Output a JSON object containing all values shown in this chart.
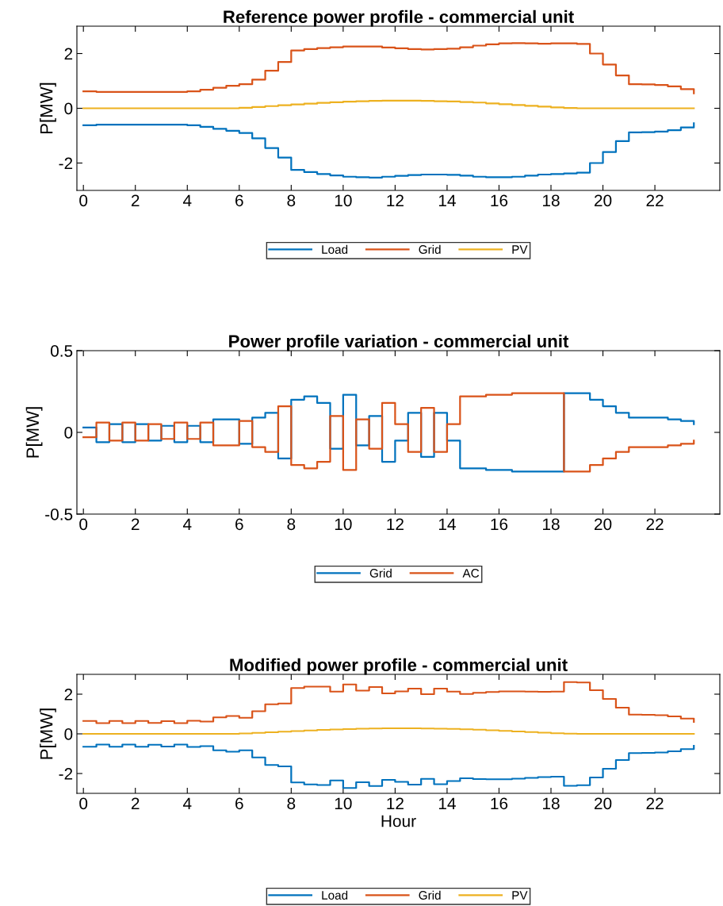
{
  "chart_data": [
    {
      "type": "step",
      "title": "Reference power profile - commercial unit",
      "ylabel": "P[MW]",
      "xlim": [
        -0.25,
        24.5
      ],
      "xticks": [
        0,
        2,
        4,
        6,
        8,
        10,
        12,
        14,
        16,
        18,
        20,
        22
      ],
      "ylim": [
        -3,
        3
      ],
      "yticks": [
        -2,
        0,
        2
      ],
      "legend": "bottom",
      "grid": false,
      "x": [
        0,
        0.5,
        1,
        1.5,
        2,
        2.5,
        3,
        3.5,
        4,
        4.5,
        5,
        5.5,
        6,
        6.5,
        7,
        7.5,
        8,
        8.5,
        9,
        9.5,
        10,
        10.5,
        11,
        11.5,
        12,
        12.5,
        13,
        13.5,
        14,
        14.5,
        15,
        15.5,
        16,
        16.5,
        17,
        17.5,
        18,
        18.5,
        19,
        19.5,
        20,
        20.5,
        21,
        21.5,
        22,
        22.5,
        23,
        23.5
      ],
      "series": [
        {
          "name": "Load",
          "color": "#0072bd",
          "values": [
            -0.62,
            -0.6,
            -0.6,
            -0.6,
            -0.6,
            -0.6,
            -0.6,
            -0.6,
            -0.62,
            -0.68,
            -0.75,
            -0.82,
            -0.9,
            -1.1,
            -1.45,
            -1.8,
            -2.25,
            -2.33,
            -2.4,
            -2.45,
            -2.5,
            -2.52,
            -2.53,
            -2.5,
            -2.47,
            -2.44,
            -2.42,
            -2.42,
            -2.43,
            -2.46,
            -2.5,
            -2.52,
            -2.52,
            -2.5,
            -2.46,
            -2.42,
            -2.4,
            -2.38,
            -2.35,
            -2.0,
            -1.6,
            -1.2,
            -0.88,
            -0.87,
            -0.85,
            -0.8,
            -0.7,
            -0.55
          ]
        },
        {
          "name": "Grid",
          "color": "#d95319",
          "values": [
            0.62,
            0.6,
            0.6,
            0.6,
            0.6,
            0.6,
            0.6,
            0.6,
            0.62,
            0.68,
            0.75,
            0.82,
            0.88,
            1.05,
            1.37,
            1.69,
            2.11,
            2.16,
            2.2,
            2.23,
            2.26,
            2.26,
            2.26,
            2.22,
            2.19,
            2.16,
            2.15,
            2.16,
            2.18,
            2.23,
            2.29,
            2.34,
            2.37,
            2.38,
            2.37,
            2.36,
            2.37,
            2.37,
            2.35,
            2.0,
            1.6,
            1.2,
            0.88,
            0.87,
            0.85,
            0.8,
            0.7,
            0.55
          ]
        },
        {
          "name": "PV",
          "color": "#edb120",
          "values": [
            0,
            0,
            0,
            0,
            0,
            0,
            0,
            0,
            0,
            0,
            0,
            0,
            0.02,
            0.05,
            0.08,
            0.11,
            0.14,
            0.17,
            0.2,
            0.22,
            0.24,
            0.26,
            0.27,
            0.28,
            0.28,
            0.28,
            0.27,
            0.26,
            0.25,
            0.23,
            0.21,
            0.18,
            0.15,
            0.12,
            0.09,
            0.06,
            0.03,
            0.01,
            0,
            0,
            0,
            0,
            0,
            0,
            0,
            0,
            0,
            0
          ]
        }
      ]
    },
    {
      "type": "step",
      "title": "Power profile variation - commercial unit",
      "ylabel": "P[MW]",
      "xlim": [
        -0.25,
        24.5
      ],
      "xticks": [
        0,
        2,
        4,
        6,
        8,
        10,
        12,
        14,
        16,
        18,
        20,
        22
      ],
      "ylim": [
        -0.5,
        0.5
      ],
      "yticks": [
        -0.5,
        0,
        0.5
      ],
      "legend": "bottom",
      "grid": false,
      "x": [
        0,
        0.5,
        1,
        1.5,
        2,
        2.5,
        3,
        3.5,
        4,
        4.5,
        5,
        5.5,
        6,
        6.5,
        7,
        7.5,
        8,
        8.5,
        9,
        9.5,
        10,
        10.5,
        11,
        11.5,
        12,
        12.5,
        13,
        13.5,
        14,
        14.5,
        15,
        15.5,
        16,
        16.5,
        17,
        17.5,
        18,
        18.5,
        19,
        19.5,
        20,
        20.5,
        21,
        21.5,
        22,
        22.5,
        23,
        23.5
      ],
      "series": [
        {
          "name": "Grid",
          "color": "#0072bd",
          "values": [
            0.03,
            -0.06,
            0.05,
            -0.06,
            0.05,
            -0.05,
            0.04,
            -0.06,
            0.04,
            -0.06,
            0.08,
            0.08,
            -0.07,
            0.09,
            0.12,
            -0.16,
            0.2,
            0.22,
            0.18,
            -0.1,
            0.23,
            -0.08,
            0.1,
            -0.18,
            -0.05,
            0.12,
            -0.15,
            0.12,
            -0.05,
            -0.22,
            -0.22,
            -0.23,
            -0.23,
            -0.24,
            -0.24,
            -0.24,
            -0.24,
            0.24,
            0.24,
            0.2,
            0.16,
            0.12,
            0.09,
            0.09,
            0.09,
            0.08,
            0.07,
            0.05
          ]
        },
        {
          "name": "AC",
          "color": "#d95319",
          "values": [
            -0.03,
            0.06,
            -0.05,
            0.06,
            -0.05,
            0.05,
            -0.04,
            0.06,
            -0.04,
            0.06,
            -0.08,
            -0.08,
            0.07,
            -0.09,
            -0.12,
            0.16,
            -0.2,
            -0.22,
            -0.18,
            0.1,
            -0.23,
            0.08,
            -0.1,
            0.18,
            0.05,
            -0.12,
            0.15,
            -0.12,
            0.05,
            0.22,
            0.22,
            0.23,
            0.23,
            0.24,
            0.24,
            0.24,
            0.24,
            -0.24,
            -0.24,
            -0.2,
            -0.16,
            -0.12,
            -0.09,
            -0.09,
            -0.09,
            -0.08,
            -0.07,
            -0.05
          ]
        }
      ]
    },
    {
      "type": "step",
      "title": "Modified power profile - commercial unit",
      "ylabel": "P[MW]",
      "xlabel": "Hour",
      "xlim": [
        -0.25,
        24.5
      ],
      "xticks": [
        0,
        2,
        4,
        6,
        8,
        10,
        12,
        14,
        16,
        18,
        20,
        22
      ],
      "ylim": [
        -3,
        3
      ],
      "yticks": [
        -2,
        0,
        2
      ],
      "legend": "bottom",
      "grid": false,
      "x": [
        0,
        0.5,
        1,
        1.5,
        2,
        2.5,
        3,
        3.5,
        4,
        4.5,
        5,
        5.5,
        6,
        6.5,
        7,
        7.5,
        8,
        8.5,
        9,
        9.5,
        10,
        10.5,
        11,
        11.5,
        12,
        12.5,
        13,
        13.5,
        14,
        14.5,
        15,
        15.5,
        16,
        16.5,
        17,
        17.5,
        18,
        18.5,
        19,
        19.5,
        20,
        20.5,
        21,
        21.5,
        22,
        22.5,
        23,
        23.5
      ],
      "series": [
        {
          "name": "Load",
          "color": "#0072bd",
          "values": [
            -0.65,
            -0.54,
            -0.65,
            -0.54,
            -0.65,
            -0.55,
            -0.64,
            -0.54,
            -0.66,
            -0.62,
            -0.83,
            -0.9,
            -0.83,
            -1.19,
            -1.57,
            -1.64,
            -2.45,
            -2.55,
            -2.58,
            -2.35,
            -2.73,
            -2.44,
            -2.63,
            -2.32,
            -2.42,
            -2.56,
            -2.27,
            -2.54,
            -2.38,
            -2.24,
            -2.28,
            -2.29,
            -2.29,
            -2.26,
            -2.22,
            -2.18,
            -2.16,
            -2.62,
            -2.59,
            -2.2,
            -1.76,
            -1.32,
            -0.97,
            -0.96,
            -0.94,
            -0.88,
            -0.77,
            -0.6
          ]
        },
        {
          "name": "Grid",
          "color": "#d95319",
          "values": [
            0.65,
            0.54,
            0.65,
            0.54,
            0.65,
            0.55,
            0.64,
            0.54,
            0.66,
            0.62,
            0.83,
            0.9,
            0.81,
            1.14,
            1.49,
            1.53,
            2.31,
            2.38,
            2.38,
            2.13,
            2.49,
            2.18,
            2.36,
            2.04,
            2.14,
            2.28,
            2.0,
            2.28,
            2.13,
            2.01,
            2.07,
            2.11,
            2.14,
            2.14,
            2.13,
            2.12,
            2.13,
            2.61,
            2.59,
            2.2,
            1.76,
            1.32,
            0.97,
            0.96,
            0.94,
            0.88,
            0.77,
            0.6
          ]
        },
        {
          "name": "PV",
          "color": "#edb120",
          "values": [
            0,
            0,
            0,
            0,
            0,
            0,
            0,
            0,
            0,
            0,
            0,
            0,
            0.02,
            0.05,
            0.08,
            0.11,
            0.14,
            0.17,
            0.2,
            0.22,
            0.24,
            0.26,
            0.27,
            0.28,
            0.28,
            0.28,
            0.27,
            0.26,
            0.25,
            0.23,
            0.21,
            0.18,
            0.15,
            0.12,
            0.09,
            0.06,
            0.03,
            0.01,
            0,
            0,
            0,
            0,
            0,
            0,
            0,
            0,
            0,
            0
          ]
        }
      ]
    }
  ]
}
